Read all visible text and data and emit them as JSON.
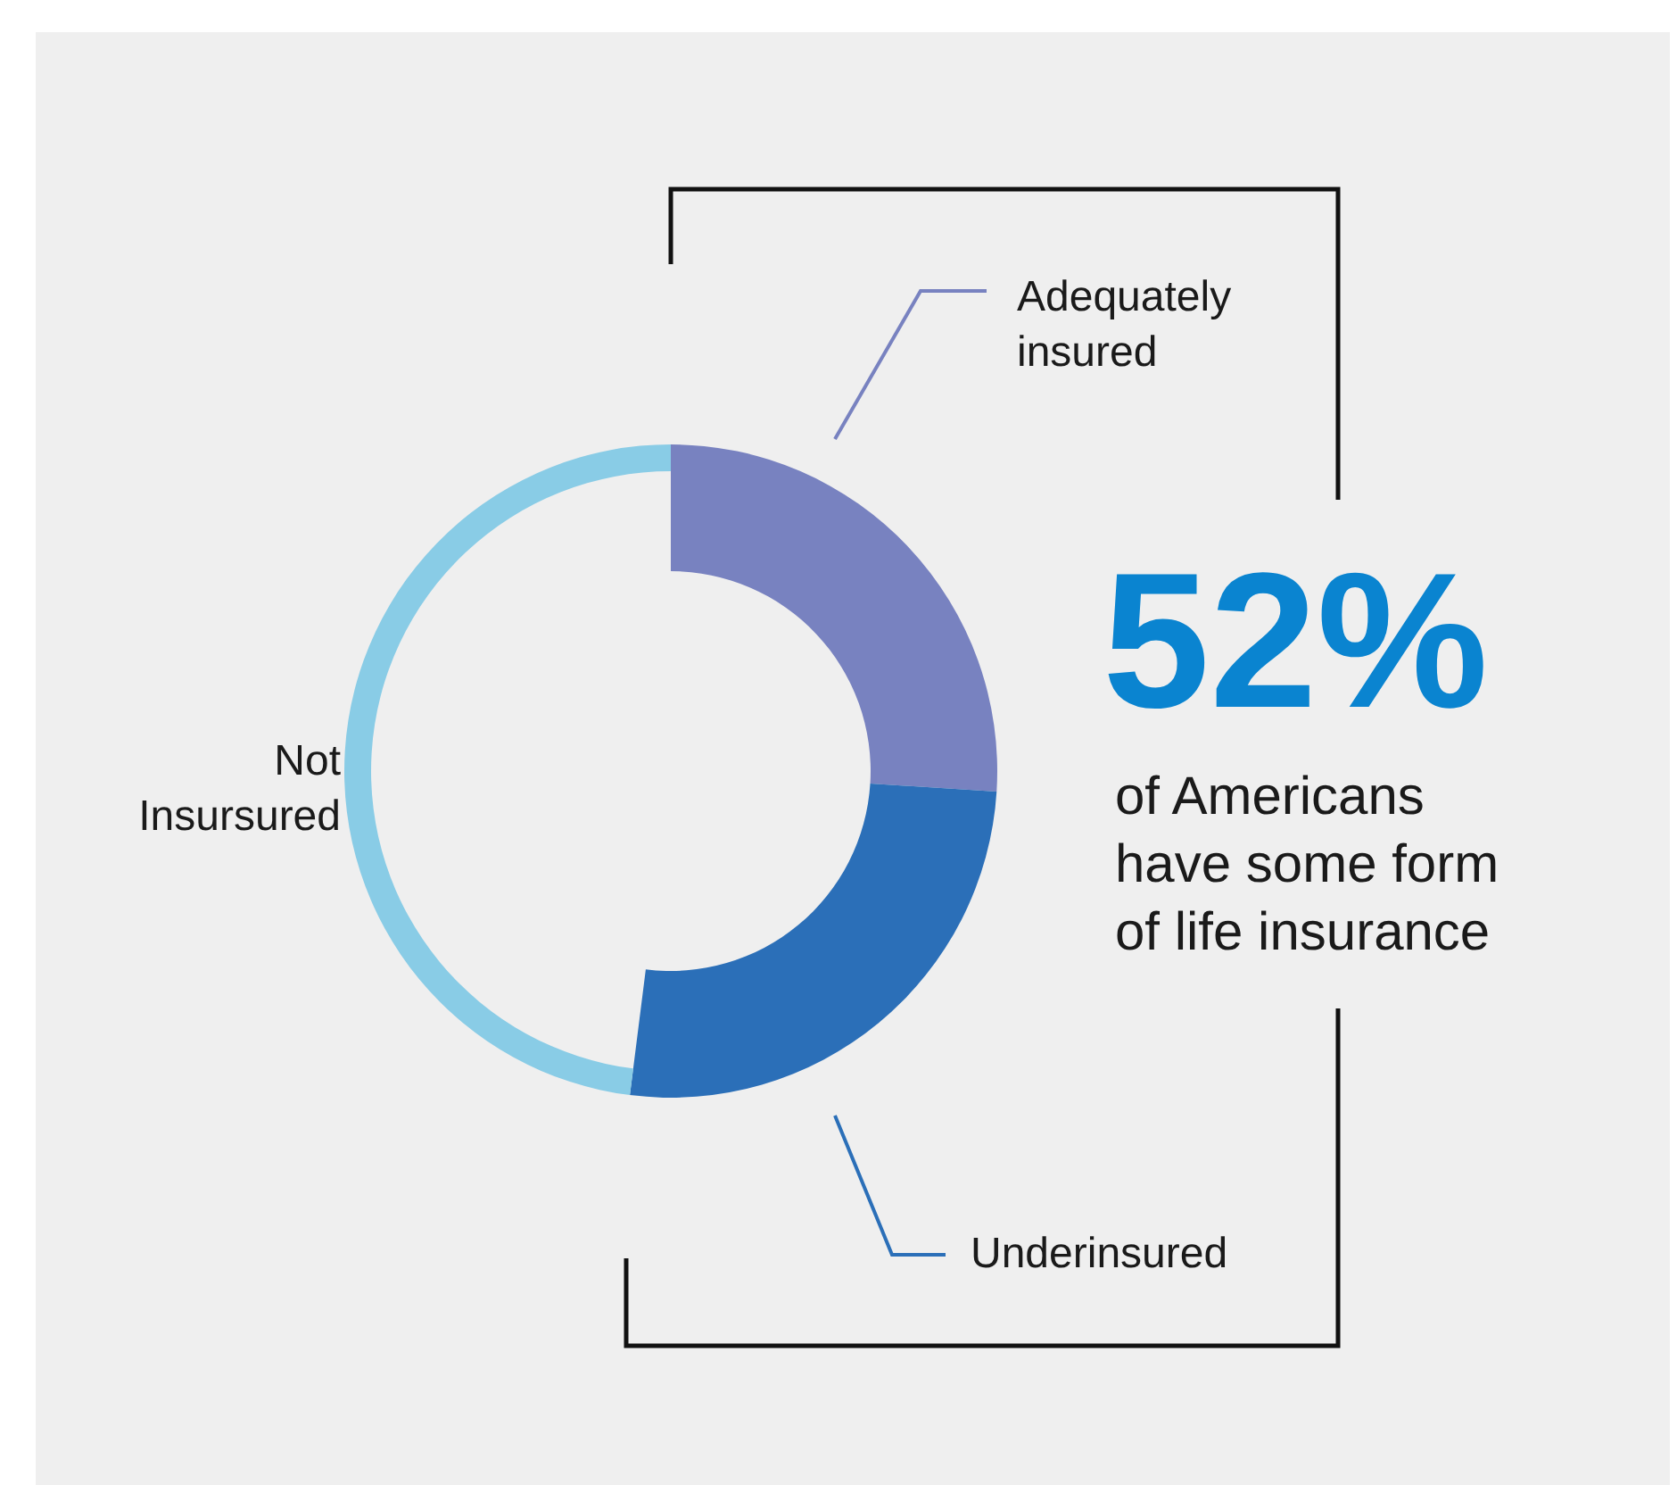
{
  "chart_data": {
    "type": "donut",
    "categories": [
      "Adequately\ninsured",
      "Underinsured",
      "Not\nInsursured"
    ],
    "values": [
      26,
      26,
      48
    ],
    "colors": [
      "#7882c0",
      "#2b6fb8",
      "#89cce6"
    ],
    "annotations": [
      "52%",
      "of Americans\nhave some form\nof life insurance"
    ]
  }
}
